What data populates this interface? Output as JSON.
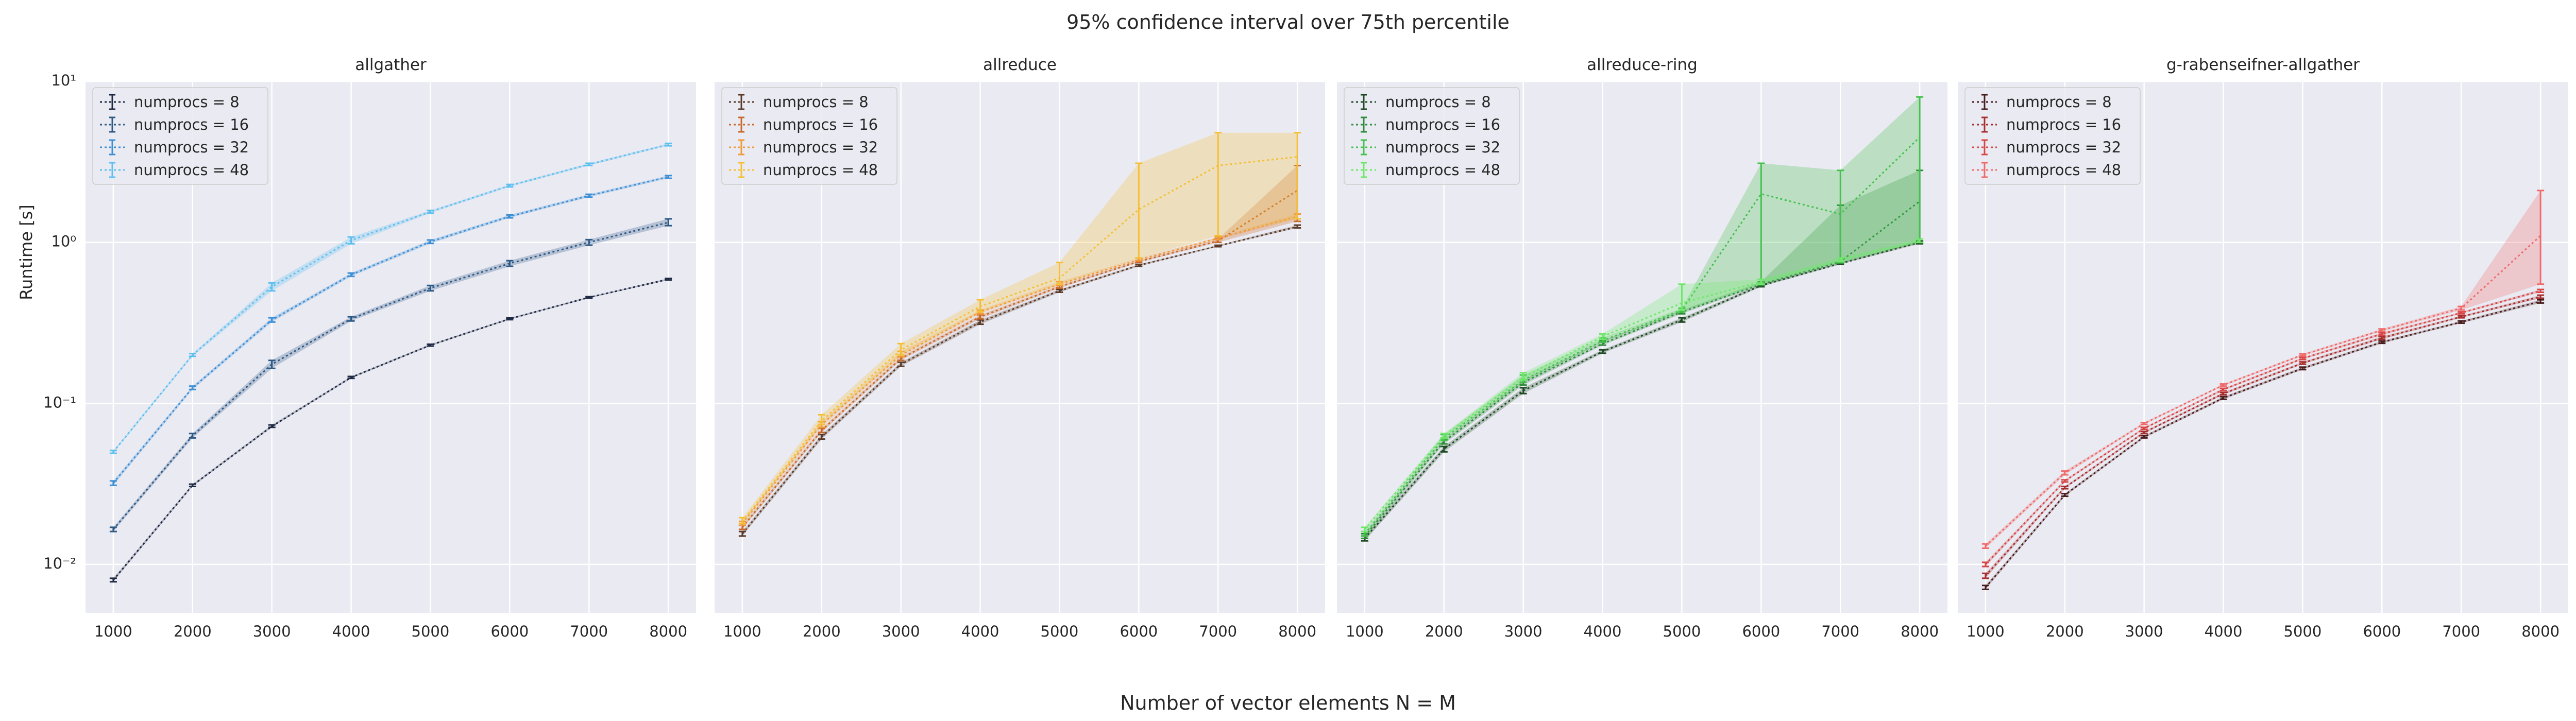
{
  "figure": {
    "suptitle": "95% confidence interval over 75th percentile",
    "xlabel": "Number of vector elements N = M",
    "ylabel": "Runtime [s]"
  },
  "chart_data": [
    {
      "type": "line",
      "title": "allgather",
      "x": [
        1000,
        2000,
        3000,
        4000,
        5000,
        6000,
        7000,
        8000
      ],
      "xticks": [
        "1000",
        "2000",
        "3000",
        "4000",
        "5000",
        "6000",
        "7000",
        "8000"
      ],
      "yscale": "log",
      "ylim": [
        0.005,
        10
      ],
      "yticks": [
        0.01,
        0.1,
        1,
        10
      ],
      "grid": true,
      "legend": "top-left",
      "series": [
        {
          "name": "numprocs = 8",
          "color": "#1f2a44",
          "values": [
            0.008,
            0.031,
            0.072,
            0.145,
            0.23,
            0.335,
            0.455,
            0.59
          ],
          "lower": [
            0.0078,
            0.0305,
            0.071,
            0.143,
            0.227,
            0.331,
            0.45,
            0.584
          ],
          "upper": [
            0.0082,
            0.0315,
            0.0735,
            0.147,
            0.233,
            0.339,
            0.46,
            0.597
          ]
        },
        {
          "name": "numprocs = 16",
          "color": "#2d5a87",
          "values": [
            0.0165,
            0.063,
            0.175,
            0.335,
            0.52,
            0.74,
            1.0,
            1.33
          ],
          "lower": [
            0.016,
            0.061,
            0.165,
            0.325,
            0.5,
            0.71,
            0.96,
            1.27
          ],
          "upper": [
            0.017,
            0.065,
            0.185,
            0.345,
            0.54,
            0.77,
            1.04,
            1.4
          ]
        },
        {
          "name": "numprocs = 32",
          "color": "#3d8fd6",
          "values": [
            0.032,
            0.125,
            0.33,
            0.63,
            1.01,
            1.45,
            1.95,
            2.55
          ],
          "lower": [
            0.031,
            0.122,
            0.32,
            0.615,
            0.985,
            1.42,
            1.91,
            2.5
          ],
          "upper": [
            0.033,
            0.128,
            0.34,
            0.645,
            1.035,
            1.48,
            1.99,
            2.6
          ]
        },
        {
          "name": "numprocs = 48",
          "color": "#5ec0f0",
          "values": [
            0.05,
            0.2,
            0.53,
            1.03,
            1.55,
            2.25,
            3.05,
            4.05
          ],
          "lower": [
            0.049,
            0.196,
            0.5,
            0.98,
            1.52,
            2.21,
            3.0,
            3.98
          ],
          "upper": [
            0.051,
            0.204,
            0.56,
            1.08,
            1.58,
            2.29,
            3.1,
            4.12
          ]
        }
      ]
    },
    {
      "type": "line",
      "title": "allreduce",
      "x": [
        1000,
        2000,
        3000,
        4000,
        5000,
        6000,
        7000,
        8000
      ],
      "xticks": [
        "1000",
        "2000",
        "3000",
        "4000",
        "5000",
        "6000",
        "7000",
        "8000"
      ],
      "yscale": "log",
      "ylim": [
        0.005,
        10
      ],
      "yticks": [
        0.01,
        0.1,
        1,
        10
      ],
      "grid": true,
      "legend": "top-left",
      "series": [
        {
          "name": "numprocs = 8",
          "color": "#5a3a28",
          "values": [
            0.0155,
            0.062,
            0.175,
            0.32,
            0.5,
            0.72,
            0.95,
            1.25
          ],
          "lower": [
            0.015,
            0.06,
            0.17,
            0.31,
            0.49,
            0.71,
            0.94,
            1.23
          ],
          "upper": [
            0.016,
            0.064,
            0.18,
            0.33,
            0.51,
            0.73,
            0.96,
            1.28
          ]
        },
        {
          "name": "numprocs = 16",
          "color": "#c8682a",
          "values": [
            0.017,
            0.068,
            0.19,
            0.345,
            0.53,
            0.76,
            1.02,
            2.1
          ],
          "lower": [
            0.0165,
            0.066,
            0.185,
            0.335,
            0.52,
            0.75,
            1.0,
            1.35
          ],
          "upper": [
            0.0175,
            0.07,
            0.195,
            0.355,
            0.54,
            0.77,
            1.05,
            3.0
          ]
        },
        {
          "name": "numprocs = 32",
          "color": "#f09a38",
          "values": [
            0.018,
            0.074,
            0.2,
            0.37,
            0.55,
            0.78,
            1.06,
            1.45
          ],
          "lower": [
            0.0175,
            0.071,
            0.195,
            0.36,
            0.54,
            0.77,
            1.04,
            1.4
          ],
          "upper": [
            0.0185,
            0.077,
            0.21,
            0.38,
            0.57,
            0.8,
            1.08,
            1.5
          ]
        },
        {
          "name": "numprocs = 48",
          "color": "#f5c035",
          "values": [
            0.0185,
            0.078,
            0.215,
            0.4,
            0.6,
            1.6,
            3.0,
            3.4
          ],
          "lower": [
            0.018,
            0.074,
            0.2,
            0.37,
            0.55,
            0.8,
            1.1,
            1.4
          ],
          "upper": [
            0.0195,
            0.085,
            0.235,
            0.44,
            0.75,
            3.1,
            4.8,
            4.8
          ]
        }
      ]
    },
    {
      "type": "line",
      "title": "allreduce-ring",
      "x": [
        1000,
        2000,
        3000,
        4000,
        5000,
        6000,
        7000,
        8000
      ],
      "xticks": [
        "1000",
        "2000",
        "3000",
        "4000",
        "5000",
        "6000",
        "7000",
        "8000"
      ],
      "yscale": "log",
      "ylim": [
        0.005,
        10
      ],
      "yticks": [
        0.01,
        0.1,
        1,
        10
      ],
      "grid": true,
      "legend": "top-left",
      "series": [
        {
          "name": "numprocs = 8",
          "color": "#1f4a25",
          "values": [
            0.0145,
            0.052,
            0.12,
            0.21,
            0.33,
            0.54,
            0.74,
            1.0
          ],
          "lower": [
            0.014,
            0.05,
            0.115,
            0.205,
            0.32,
            0.53,
            0.73,
            0.98
          ],
          "upper": [
            0.015,
            0.054,
            0.125,
            0.215,
            0.34,
            0.55,
            0.75,
            1.02
          ]
        },
        {
          "name": "numprocs = 16",
          "color": "#2e8b3a",
          "values": [
            0.015,
            0.058,
            0.135,
            0.235,
            0.37,
            0.55,
            0.76,
            1.8
          ],
          "lower": [
            0.0145,
            0.056,
            0.13,
            0.23,
            0.36,
            0.54,
            0.74,
            1.0
          ],
          "upper": [
            0.0155,
            0.06,
            0.14,
            0.245,
            0.38,
            0.57,
            1.7,
            2.8
          ]
        },
        {
          "name": "numprocs = 32",
          "color": "#45c14d",
          "values": [
            0.0155,
            0.061,
            0.14,
            0.245,
            0.38,
            2.0,
            1.5,
            4.5
          ],
          "lower": [
            0.015,
            0.059,
            0.135,
            0.24,
            0.37,
            0.55,
            0.75,
            1.0
          ],
          "upper": [
            0.016,
            0.064,
            0.15,
            0.255,
            0.39,
            3.1,
            2.8,
            8.0
          ]
        },
        {
          "name": "numprocs = 48",
          "color": "#6ee86a",
          "values": [
            0.0165,
            0.063,
            0.145,
            0.26,
            0.42,
            0.57,
            0.78,
            1.02
          ],
          "lower": [
            0.016,
            0.061,
            0.14,
            0.25,
            0.38,
            0.55,
            0.76,
            1.0
          ],
          "upper": [
            0.017,
            0.065,
            0.155,
            0.27,
            0.55,
            0.59,
            0.8,
            1.05
          ]
        }
      ]
    },
    {
      "type": "line",
      "title": "g-rabenseifner-allgather",
      "x": [
        1000,
        2000,
        3000,
        4000,
        5000,
        6000,
        7000,
        8000
      ],
      "xticks": [
        "1000",
        "2000",
        "3000",
        "4000",
        "5000",
        "6000",
        "7000",
        "8000"
      ],
      "yscale": "log",
      "ylim": [
        0.005,
        10
      ],
      "yticks": [
        0.01,
        0.1,
        1,
        10
      ],
      "grid": true,
      "legend": "top-left",
      "series": [
        {
          "name": "numprocs = 8",
          "color": "#4a1e1e",
          "values": [
            0.0072,
            0.027,
            0.062,
            0.108,
            0.165,
            0.24,
            0.32,
            0.43
          ],
          "lower": [
            0.007,
            0.0265,
            0.061,
            0.106,
            0.162,
            0.236,
            0.315,
            0.42
          ],
          "upper": [
            0.0074,
            0.0275,
            0.063,
            0.11,
            0.168,
            0.244,
            0.325,
            0.44
          ]
        },
        {
          "name": "numprocs = 16",
          "color": "#a82e2e",
          "values": [
            0.0085,
            0.03,
            0.066,
            0.115,
            0.178,
            0.255,
            0.345,
            0.46
          ],
          "lower": [
            0.0082,
            0.0295,
            0.065,
            0.113,
            0.175,
            0.25,
            0.34,
            0.45
          ],
          "upper": [
            0.0088,
            0.0305,
            0.067,
            0.117,
            0.181,
            0.26,
            0.35,
            0.47
          ]
        },
        {
          "name": "numprocs = 32",
          "color": "#d94646",
          "values": [
            0.01,
            0.033,
            0.07,
            0.122,
            0.19,
            0.27,
            0.365,
            0.5
          ],
          "lower": [
            0.0097,
            0.0325,
            0.069,
            0.12,
            0.187,
            0.265,
            0.36,
            0.49
          ],
          "upper": [
            0.0103,
            0.0335,
            0.071,
            0.124,
            0.193,
            0.275,
            0.37,
            0.51
          ]
        },
        {
          "name": "numprocs = 48",
          "color": "#f06a6a",
          "values": [
            0.013,
            0.037,
            0.075,
            0.13,
            0.2,
            0.285,
            0.39,
            1.1
          ],
          "lower": [
            0.0126,
            0.036,
            0.074,
            0.128,
            0.197,
            0.28,
            0.38,
            0.55
          ],
          "upper": [
            0.0134,
            0.038,
            0.076,
            0.132,
            0.203,
            0.29,
            0.4,
            2.1
          ]
        }
      ]
    }
  ]
}
